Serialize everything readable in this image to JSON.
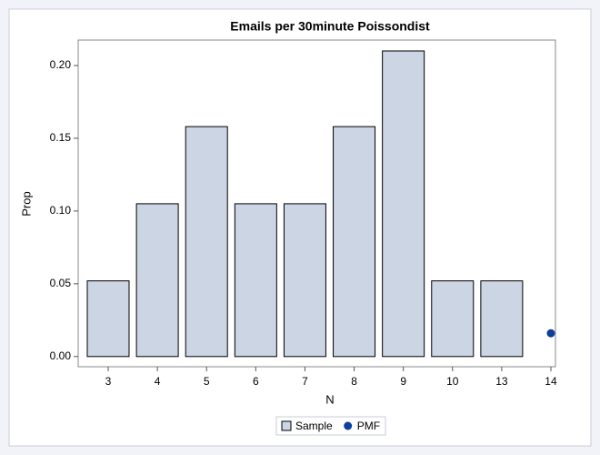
{
  "chart_data": {
    "type": "bar",
    "title": "Emails per 30minute Poissondist",
    "x_label": "N",
    "y_label": "Prop",
    "categories": [
      "3",
      "4",
      "5",
      "6",
      "7",
      "8",
      "9",
      "10",
      "13",
      "14"
    ],
    "series": [
      {
        "name": "Sample",
        "type": "bar",
        "color": "#cbd5e3",
        "values": [
          0.052,
          0.105,
          0.158,
          0.105,
          0.105,
          0.158,
          0.21,
          0.052,
          0.052,
          null
        ]
      },
      {
        "name": "PMF",
        "type": "scatter",
        "color": "#0f3f9a",
        "values": [
          null,
          null,
          null,
          null,
          null,
          null,
          null,
          null,
          null,
          0.016
        ]
      }
    ],
    "ylim": [
      -0.007,
      0.2175
    ],
    "yticks": [
      {
        "value": 0,
        "label": "0.00"
      },
      {
        "value": 0.05,
        "label": "0.05"
      },
      {
        "value": 0.1,
        "label": "0.10"
      },
      {
        "value": 0.15,
        "label": "0.15"
      },
      {
        "value": 0.2,
        "label": "0.20"
      }
    ],
    "grid": false
  }
}
